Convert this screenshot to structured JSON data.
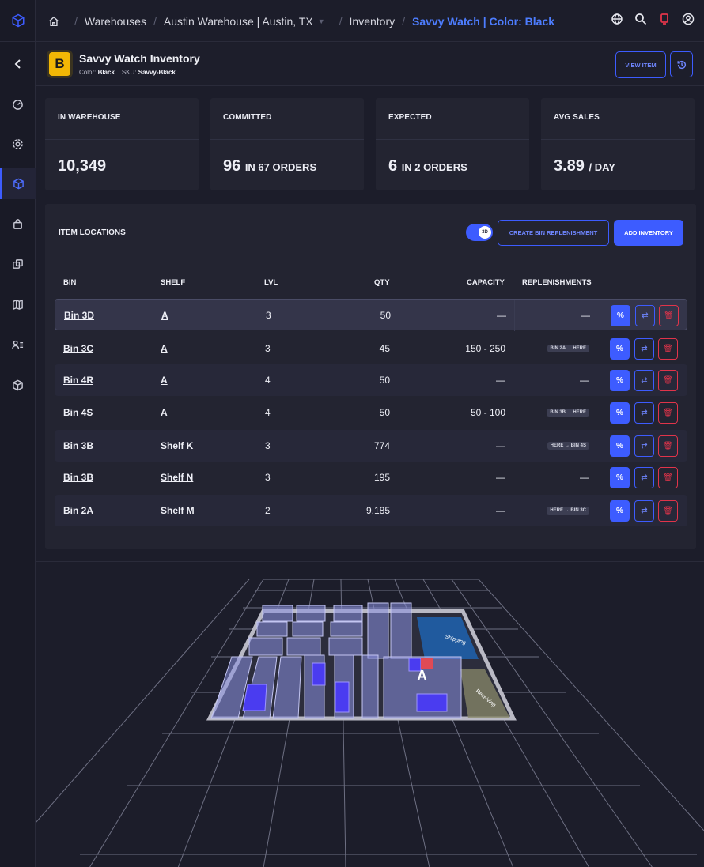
{
  "breadcrumb": {
    "items": [
      "Warehouses",
      "Austin Warehouse | Austin, TX",
      "Inventory"
    ],
    "active": "Savvy Watch | Color: Black"
  },
  "header": {
    "badge_letter": "B",
    "title": "Savvy Watch Inventory",
    "color_label": "Color:",
    "color_value": "Black",
    "sku_label": "SKU:",
    "sku_value": "Savvy-Black",
    "view_item_label": "VIEW ITEM"
  },
  "stats": [
    {
      "label": "IN WAREHOUSE",
      "value": "10,349",
      "suffix": ""
    },
    {
      "label": "COMMITTED",
      "value": "96",
      "suffix": "IN 67 ORDERS"
    },
    {
      "label": "EXPECTED",
      "value": "6",
      "suffix": "IN 2 ORDERS"
    },
    {
      "label": "AVG SALES",
      "value": "3.89",
      "suffix": "/ DAY"
    }
  ],
  "locations": {
    "title": "ITEM LOCATIONS",
    "toggle_label": "3D",
    "create_replenishment_label": "CREATE BIN REPLENISHMENT",
    "add_inventory_label": "ADD INVENTORY",
    "columns": [
      "BIN",
      "SHELF",
      "LVL",
      "QTY",
      "CAPACITY",
      "REPLENISHMENTS"
    ],
    "rows": [
      {
        "bin": "Bin 3D",
        "shelf": "A",
        "lvl": "3",
        "qty": "50",
        "capacity": "—",
        "replenishment": "—"
      },
      {
        "bin": "Bin 3C",
        "shelf": "A",
        "lvl": "3",
        "qty": "45",
        "capacity": "150 - 250",
        "replenishment": "BIN 2A → HERE"
      },
      {
        "bin": "Bin 4R",
        "shelf": "A",
        "lvl": "4",
        "qty": "50",
        "capacity": "—",
        "replenishment": "—"
      },
      {
        "bin": "Bin 4S",
        "shelf": "A",
        "lvl": "4",
        "qty": "50",
        "capacity": "50 - 100",
        "replenishment": "BIN 3B → HERE"
      },
      {
        "bin": "Bin 3B",
        "shelf": "Shelf K",
        "lvl": "3",
        "qty": "774",
        "capacity": "—",
        "replenishment": "HERE → BIN 4S"
      },
      {
        "bin": "Bin 3B",
        "shelf": "Shelf N",
        "lvl": "3",
        "qty": "195",
        "capacity": "—",
        "replenishment": "—"
      },
      {
        "bin": "Bin 2A",
        "shelf": "Shelf M",
        "lvl": "2",
        "qty": "9,185",
        "capacity": "—",
        "replenishment": "HERE → BIN 3C"
      }
    ],
    "action_pct_glyph": "%",
    "action_move_glyph": "⇄",
    "action_delete_glyph": "🗑"
  },
  "map": {
    "zone_shipping": "Shipping",
    "zone_receiving": "Receiving",
    "shelf_marker": "A",
    "floor_color": "#b9b9c4",
    "shelf_color": "#8b8fe0",
    "highlight_color": "#4a3cf0",
    "selected_bin_color": "#e04a55",
    "shipping_color": "#1f5fa8",
    "receiving_color": "#8a8a6a"
  },
  "colors": {
    "accent": "#3d5cff",
    "danger": "#e1344a",
    "badge": "#f2b705"
  }
}
